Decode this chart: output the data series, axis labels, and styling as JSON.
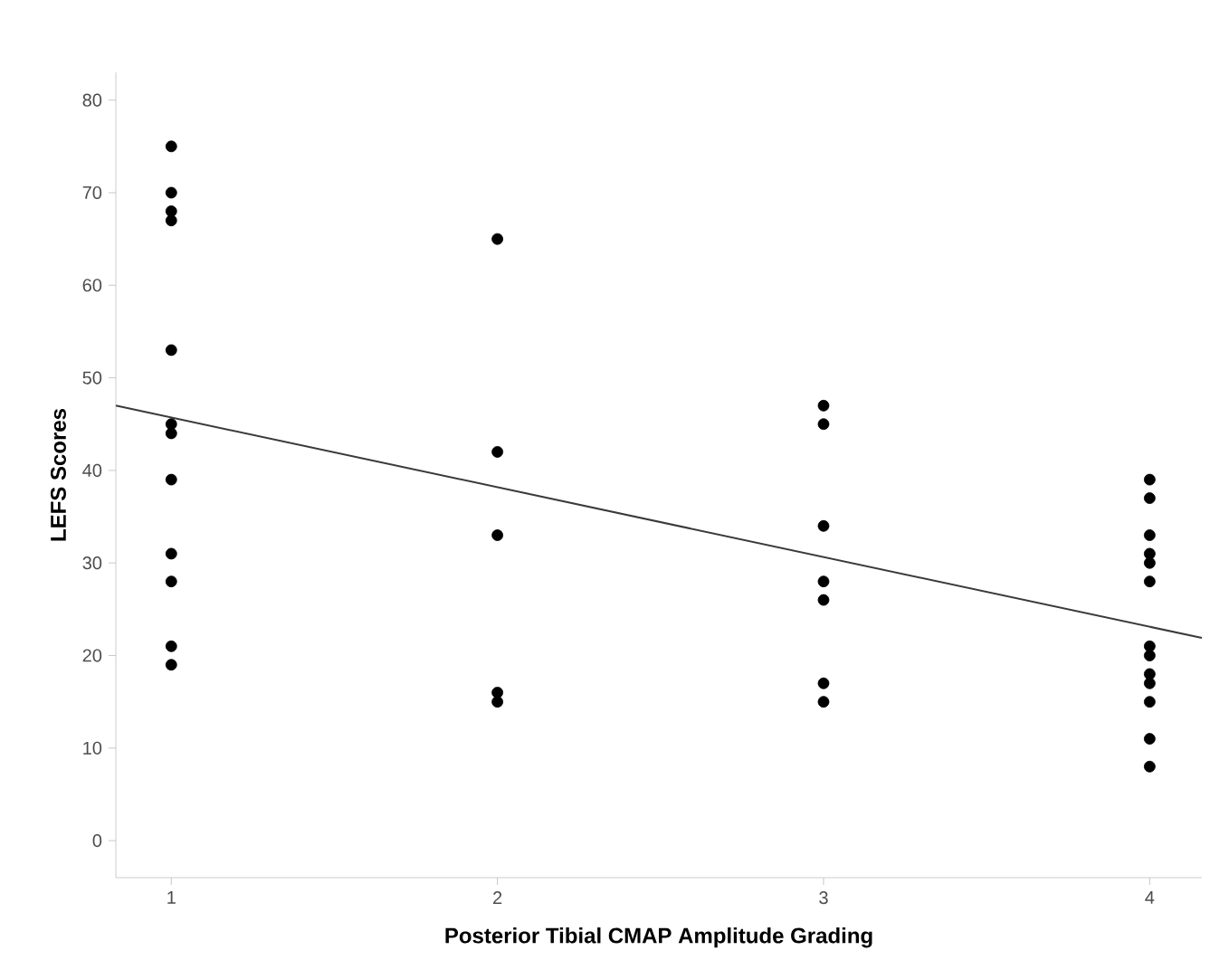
{
  "chart_data": {
    "type": "scatter",
    "xlabel": "Posterior Tibial CMAP Amplitude Grading",
    "ylabel": "LEFS Scores",
    "xlim": [
      0.83,
      4.16
    ],
    "ylim": [
      -4,
      83
    ],
    "xticks": [
      1,
      2,
      3,
      4
    ],
    "yticks": [
      0,
      10,
      20,
      30,
      40,
      50,
      60,
      70,
      80
    ],
    "grid": false,
    "series": [
      {
        "type": "scatter",
        "marker": "circle",
        "color": "#000000",
        "x": [
          1,
          1,
          1,
          1,
          1,
          1,
          1,
          1,
          1,
          1,
          1,
          1,
          2,
          2,
          2,
          2,
          2,
          3,
          3,
          3,
          3,
          3,
          3,
          3,
          4,
          4,
          4,
          4,
          4,
          4,
          4,
          4,
          4,
          4,
          4,
          4,
          4
        ],
        "values": [
          75,
          70,
          68,
          67,
          53,
          45,
          44,
          39,
          31,
          28,
          21,
          19,
          65,
          42,
          33,
          16,
          15,
          47,
          45,
          34,
          28,
          26,
          17,
          15,
          39,
          37,
          33,
          31,
          30,
          28,
          21,
          20,
          18,
          17,
          15,
          11,
          8
        ]
      },
      {
        "type": "line",
        "color": "#3a3a3a",
        "marker": "none",
        "line_style": "solid",
        "x": [
          0.83,
          4.16
        ],
        "values": [
          47,
          21.9
        ]
      }
    ]
  }
}
